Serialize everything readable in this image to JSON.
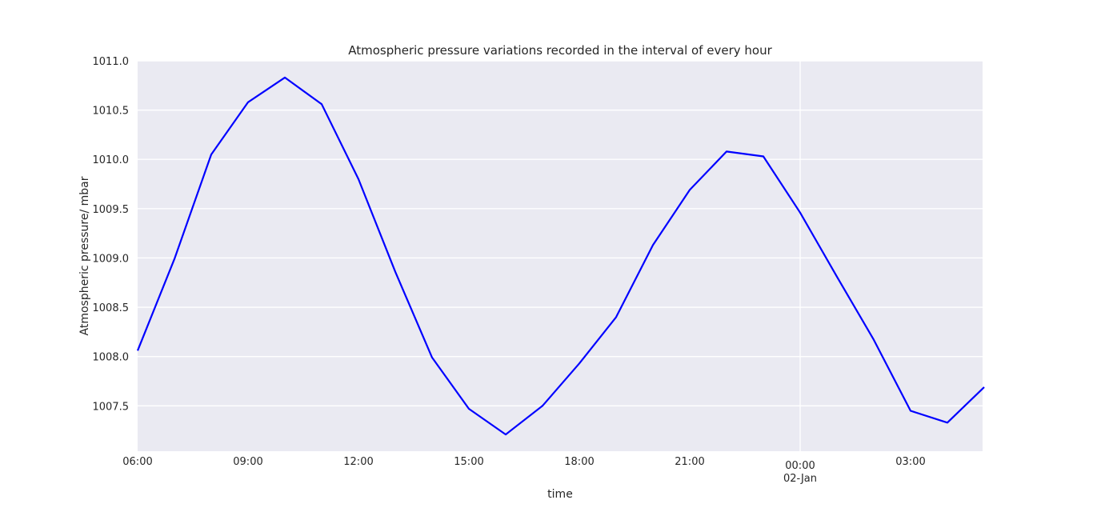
{
  "chart_data": {
    "type": "line",
    "title": "Atmospheric pressure variations recorded in the interval of every hour",
    "xlabel": "time",
    "ylabel": "Atmospheric pressure/ mbar",
    "x": [
      "06:00",
      "07:00",
      "08:00",
      "09:00",
      "10:00",
      "11:00",
      "12:00",
      "13:00",
      "14:00",
      "15:00",
      "16:00",
      "17:00",
      "18:00",
      "19:00",
      "20:00",
      "21:00",
      "22:00",
      "23:00",
      "00:00",
      "01:00",
      "02:00",
      "03:00",
      "04:00",
      "05:00"
    ],
    "series": [
      {
        "values": [
          1008.06,
          1008.99,
          1010.05,
          1010.58,
          1010.83,
          1010.56,
          1009.8,
          1008.86,
          1007.99,
          1007.47,
          1007.21,
          1007.5,
          1007.93,
          1008.4,
          1009.13,
          1009.69,
          1010.08,
          1010.03,
          1009.46,
          1008.81,
          1008.17,
          1007.45,
          1007.33,
          1007.69
        ],
        "color": "#0000ff"
      }
    ],
    "x_ticks": [
      {
        "label": "06:00",
        "index": 0
      },
      {
        "label": "09:00",
        "index": 3
      },
      {
        "label": "12:00",
        "index": 6
      },
      {
        "label": "15:00",
        "index": 9
      },
      {
        "label": "18:00",
        "index": 12
      },
      {
        "label": "21:00",
        "index": 15
      },
      {
        "label": "00:00",
        "sublabel": "02-Jan",
        "index": 18
      },
      {
        "label": "03:00",
        "index": 21
      }
    ],
    "y_ticks": [
      "1007.5",
      "1008.0",
      "1008.5",
      "1009.0",
      "1009.5",
      "1010.0",
      "1010.5",
      "1011.0"
    ],
    "ylim": [
      1007.04,
      1011.0
    ],
    "grid": true,
    "background": "#eaeaf2"
  }
}
